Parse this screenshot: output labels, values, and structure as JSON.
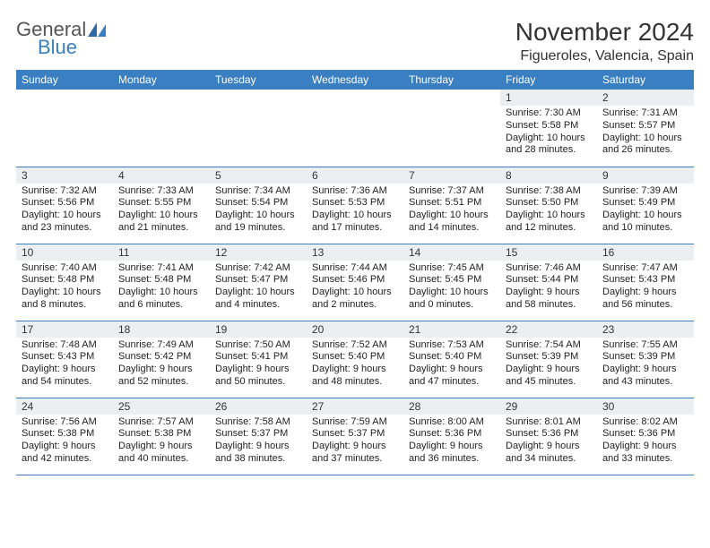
{
  "brand": {
    "word1": "General",
    "word2": "Blue",
    "word1_color": "#555555",
    "word2_color": "#3a7fc2"
  },
  "header": {
    "month_title": "November 2024",
    "location": "Figueroles, Valencia, Spain"
  },
  "colors": {
    "header_bg": "#3a7fc2",
    "header_fg": "#ffffff",
    "daynum_bg": "#eceff1",
    "rule": "#3a7fc2",
    "text": "#222222"
  },
  "typography": {
    "month_fontsize": 28,
    "location_fontsize": 16,
    "dayhdr_fontsize": 12,
    "cell_fontsize": 11
  },
  "day_headers": [
    "Sunday",
    "Monday",
    "Tuesday",
    "Wednesday",
    "Thursday",
    "Friday",
    "Saturday"
  ],
  "weeks": [
    [
      {
        "n": "",
        "sr": "",
        "ss": "",
        "dl": ""
      },
      {
        "n": "",
        "sr": "",
        "ss": "",
        "dl": ""
      },
      {
        "n": "",
        "sr": "",
        "ss": "",
        "dl": ""
      },
      {
        "n": "",
        "sr": "",
        "ss": "",
        "dl": ""
      },
      {
        "n": "",
        "sr": "",
        "ss": "",
        "dl": ""
      },
      {
        "n": "1",
        "sr": "Sunrise: 7:30 AM",
        "ss": "Sunset: 5:58 PM",
        "dl": "Daylight: 10 hours and 28 minutes."
      },
      {
        "n": "2",
        "sr": "Sunrise: 7:31 AM",
        "ss": "Sunset: 5:57 PM",
        "dl": "Daylight: 10 hours and 26 minutes."
      }
    ],
    [
      {
        "n": "3",
        "sr": "Sunrise: 7:32 AM",
        "ss": "Sunset: 5:56 PM",
        "dl": "Daylight: 10 hours and 23 minutes."
      },
      {
        "n": "4",
        "sr": "Sunrise: 7:33 AM",
        "ss": "Sunset: 5:55 PM",
        "dl": "Daylight: 10 hours and 21 minutes."
      },
      {
        "n": "5",
        "sr": "Sunrise: 7:34 AM",
        "ss": "Sunset: 5:54 PM",
        "dl": "Daylight: 10 hours and 19 minutes."
      },
      {
        "n": "6",
        "sr": "Sunrise: 7:36 AM",
        "ss": "Sunset: 5:53 PM",
        "dl": "Daylight: 10 hours and 17 minutes."
      },
      {
        "n": "7",
        "sr": "Sunrise: 7:37 AM",
        "ss": "Sunset: 5:51 PM",
        "dl": "Daylight: 10 hours and 14 minutes."
      },
      {
        "n": "8",
        "sr": "Sunrise: 7:38 AM",
        "ss": "Sunset: 5:50 PM",
        "dl": "Daylight: 10 hours and 12 minutes."
      },
      {
        "n": "9",
        "sr": "Sunrise: 7:39 AM",
        "ss": "Sunset: 5:49 PM",
        "dl": "Daylight: 10 hours and 10 minutes."
      }
    ],
    [
      {
        "n": "10",
        "sr": "Sunrise: 7:40 AM",
        "ss": "Sunset: 5:48 PM",
        "dl": "Daylight: 10 hours and 8 minutes."
      },
      {
        "n": "11",
        "sr": "Sunrise: 7:41 AM",
        "ss": "Sunset: 5:48 PM",
        "dl": "Daylight: 10 hours and 6 minutes."
      },
      {
        "n": "12",
        "sr": "Sunrise: 7:42 AM",
        "ss": "Sunset: 5:47 PM",
        "dl": "Daylight: 10 hours and 4 minutes."
      },
      {
        "n": "13",
        "sr": "Sunrise: 7:44 AM",
        "ss": "Sunset: 5:46 PM",
        "dl": "Daylight: 10 hours and 2 minutes."
      },
      {
        "n": "14",
        "sr": "Sunrise: 7:45 AM",
        "ss": "Sunset: 5:45 PM",
        "dl": "Daylight: 10 hours and 0 minutes."
      },
      {
        "n": "15",
        "sr": "Sunrise: 7:46 AM",
        "ss": "Sunset: 5:44 PM",
        "dl": "Daylight: 9 hours and 58 minutes."
      },
      {
        "n": "16",
        "sr": "Sunrise: 7:47 AM",
        "ss": "Sunset: 5:43 PM",
        "dl": "Daylight: 9 hours and 56 minutes."
      }
    ],
    [
      {
        "n": "17",
        "sr": "Sunrise: 7:48 AM",
        "ss": "Sunset: 5:43 PM",
        "dl": "Daylight: 9 hours and 54 minutes."
      },
      {
        "n": "18",
        "sr": "Sunrise: 7:49 AM",
        "ss": "Sunset: 5:42 PM",
        "dl": "Daylight: 9 hours and 52 minutes."
      },
      {
        "n": "19",
        "sr": "Sunrise: 7:50 AM",
        "ss": "Sunset: 5:41 PM",
        "dl": "Daylight: 9 hours and 50 minutes."
      },
      {
        "n": "20",
        "sr": "Sunrise: 7:52 AM",
        "ss": "Sunset: 5:40 PM",
        "dl": "Daylight: 9 hours and 48 minutes."
      },
      {
        "n": "21",
        "sr": "Sunrise: 7:53 AM",
        "ss": "Sunset: 5:40 PM",
        "dl": "Daylight: 9 hours and 47 minutes."
      },
      {
        "n": "22",
        "sr": "Sunrise: 7:54 AM",
        "ss": "Sunset: 5:39 PM",
        "dl": "Daylight: 9 hours and 45 minutes."
      },
      {
        "n": "23",
        "sr": "Sunrise: 7:55 AM",
        "ss": "Sunset: 5:39 PM",
        "dl": "Daylight: 9 hours and 43 minutes."
      }
    ],
    [
      {
        "n": "24",
        "sr": "Sunrise: 7:56 AM",
        "ss": "Sunset: 5:38 PM",
        "dl": "Daylight: 9 hours and 42 minutes."
      },
      {
        "n": "25",
        "sr": "Sunrise: 7:57 AM",
        "ss": "Sunset: 5:38 PM",
        "dl": "Daylight: 9 hours and 40 minutes."
      },
      {
        "n": "26",
        "sr": "Sunrise: 7:58 AM",
        "ss": "Sunset: 5:37 PM",
        "dl": "Daylight: 9 hours and 38 minutes."
      },
      {
        "n": "27",
        "sr": "Sunrise: 7:59 AM",
        "ss": "Sunset: 5:37 PM",
        "dl": "Daylight: 9 hours and 37 minutes."
      },
      {
        "n": "28",
        "sr": "Sunrise: 8:00 AM",
        "ss": "Sunset: 5:36 PM",
        "dl": "Daylight: 9 hours and 36 minutes."
      },
      {
        "n": "29",
        "sr": "Sunrise: 8:01 AM",
        "ss": "Sunset: 5:36 PM",
        "dl": "Daylight: 9 hours and 34 minutes."
      },
      {
        "n": "30",
        "sr": "Sunrise: 8:02 AM",
        "ss": "Sunset: 5:36 PM",
        "dl": "Daylight: 9 hours and 33 minutes."
      }
    ]
  ]
}
